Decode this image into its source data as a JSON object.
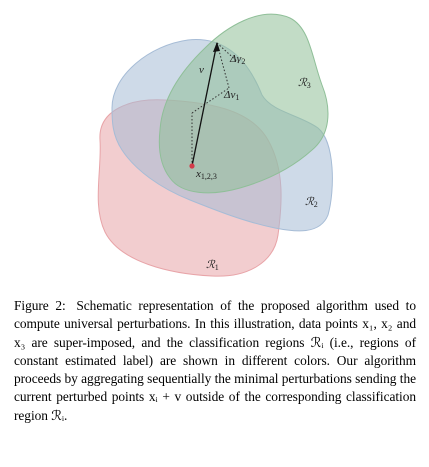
{
  "figure": {
    "regions": [
      {
        "id": "R1",
        "label": "ℛ",
        "subscript": "1",
        "color": "#e8a4a8"
      },
      {
        "id": "R2",
        "label": "ℛ",
        "subscript": "2",
        "color": "#a6bcd6"
      },
      {
        "id": "R3",
        "label": "ℛ",
        "subscript": "3",
        "color": "#8fbf98"
      }
    ],
    "point_label": "x",
    "point_subscript": "1,2,3",
    "vector_label": "v",
    "delta_labels": [
      {
        "text": "Δv",
        "subscript": "1"
      },
      {
        "text": "Δv",
        "subscript": "2"
      }
    ],
    "point_color": "#d33b4a"
  },
  "caption": {
    "label": "Figure 2:",
    "text": "Schematic representation of the proposed algorithm used to compute universal perturbations. In this illustration, data points x₁, x₂ and x₃ are super-imposed, and the classification regions ℛᵢ (i.e., regions of constant estimated label) are shown in different colors. Our algorithm proceeds by aggregating sequentially the minimal perturbations sending the current perturbed points xᵢ + v outside of the corresponding classification region ℛᵢ."
  }
}
